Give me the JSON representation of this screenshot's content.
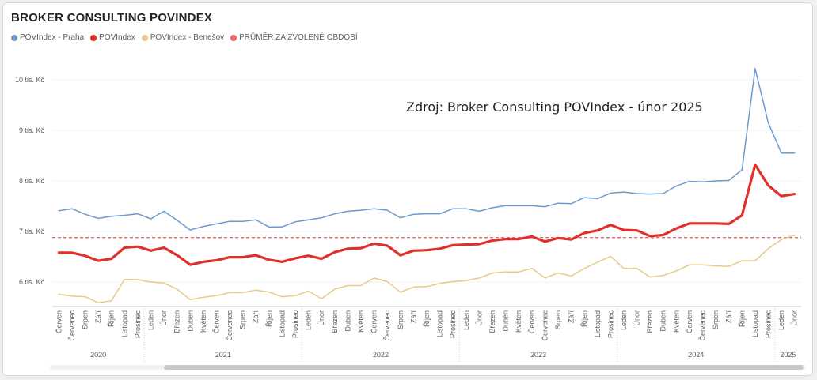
{
  "chart_data": {
    "type": "line",
    "title": "BROKER CONSULTING POVINDEX",
    "annotation": "Zdroj: Broker Consulting POVIndex - únor 2025",
    "ylim": [
      5.5,
      10.5
    ],
    "y_ticks": [
      6,
      7,
      8,
      9,
      10
    ],
    "y_tick_labels": [
      "6 tis. Kč",
      "7 tis. Kč",
      "8 tis. Kč",
      "9 tis. Kč",
      "10 tis. Kč"
    ],
    "categories": [
      "Červen",
      "Červenec",
      "Srpen",
      "Září",
      "Říjen",
      "Listopad",
      "Prosinec",
      "Leden",
      "Únor",
      "Březen",
      "Duben",
      "Květen",
      "Červen",
      "Červenec",
      "Srpen",
      "Září",
      "Říjen",
      "Listopad",
      "Prosinec",
      "Leden",
      "Únor",
      "Březen",
      "Duben",
      "Květen",
      "Červen",
      "Červenec",
      "Srpen",
      "Září",
      "Říjen",
      "Listopad",
      "Prosinec",
      "Leden",
      "Únor",
      "Březen",
      "Duben",
      "Květen",
      "Červen",
      "Červenec",
      "Srpen",
      "Září",
      "Říjen",
      "Listopad",
      "Prosinec",
      "Leden",
      "Únor",
      "Březen",
      "Duben",
      "Květen",
      "Červen",
      "Červenec",
      "Srpen",
      "Září",
      "Říjen",
      "Listopad",
      "Prosinec",
      "Leden",
      "Únor"
    ],
    "years": [
      {
        "label": "2020",
        "start": 0,
        "end": 6
      },
      {
        "label": "2021",
        "start": 7,
        "end": 18
      },
      {
        "label": "2022",
        "start": 19,
        "end": 30
      },
      {
        "label": "2023",
        "start": 31,
        "end": 42
      },
      {
        "label": "2024",
        "start": 43,
        "end": 54
      },
      {
        "label": "2025",
        "start": 55,
        "end": 56
      }
    ],
    "average": 6.88,
    "average_label": "PRŮMĚR ZA ZVOLENÉ OBDOBÍ",
    "average_color": "#e8686a",
    "series": [
      {
        "name": "POVIndex - Praha",
        "color": "#6b9bcd",
        "width": 1.5,
        "values": [
          7.41,
          7.45,
          7.34,
          7.26,
          7.3,
          7.32,
          7.35,
          7.25,
          7.4,
          7.22,
          7.03,
          7.1,
          7.15,
          7.2,
          7.2,
          7.23,
          7.09,
          7.09,
          7.19,
          7.23,
          7.27,
          7.35,
          7.4,
          7.42,
          7.45,
          7.42,
          7.27,
          7.34,
          7.35,
          7.35,
          7.45,
          7.45,
          7.4,
          7.47,
          7.51,
          7.51,
          7.51,
          7.49,
          7.56,
          7.55,
          7.67,
          7.65,
          7.76,
          7.78,
          7.75,
          7.74,
          7.75,
          7.9,
          7.99,
          7.98,
          8.0,
          8.01,
          8.22,
          10.22,
          9.15,
          8.55,
          8.55
        ]
      },
      {
        "name": "POVIndex",
        "color": "#e0302a",
        "width": 3.2,
        "values": [
          6.58,
          6.58,
          6.52,
          6.42,
          6.46,
          6.68,
          6.7,
          6.62,
          6.68,
          6.53,
          6.34,
          6.4,
          6.43,
          6.49,
          6.49,
          6.53,
          6.44,
          6.4,
          6.47,
          6.52,
          6.46,
          6.59,
          6.66,
          6.67,
          6.76,
          6.72,
          6.53,
          6.62,
          6.63,
          6.66,
          6.73,
          6.74,
          6.75,
          6.82,
          6.85,
          6.85,
          6.9,
          6.8,
          6.87,
          6.84,
          6.97,
          7.02,
          7.13,
          7.03,
          7.02,
          6.91,
          6.93,
          7.06,
          7.16,
          7.16,
          7.16,
          7.15,
          7.32,
          8.32,
          7.91,
          7.7,
          7.74
        ]
      },
      {
        "name": "POVIndex - Benešov",
        "color": "#e8c98a",
        "width": 1.5,
        "values": [
          5.76,
          5.72,
          5.71,
          5.59,
          5.63,
          6.05,
          6.05,
          6.0,
          5.98,
          5.86,
          5.65,
          5.7,
          5.73,
          5.79,
          5.79,
          5.84,
          5.8,
          5.71,
          5.73,
          5.82,
          5.67,
          5.86,
          5.93,
          5.93,
          6.08,
          6.01,
          5.8,
          5.9,
          5.91,
          5.97,
          6.01,
          6.03,
          6.08,
          6.18,
          6.2,
          6.2,
          6.27,
          6.08,
          6.18,
          6.12,
          6.27,
          6.39,
          6.51,
          6.27,
          6.27,
          6.1,
          6.13,
          6.22,
          6.34,
          6.34,
          6.32,
          6.31,
          6.42,
          6.42,
          6.66,
          6.84,
          6.93
        ]
      }
    ]
  }
}
